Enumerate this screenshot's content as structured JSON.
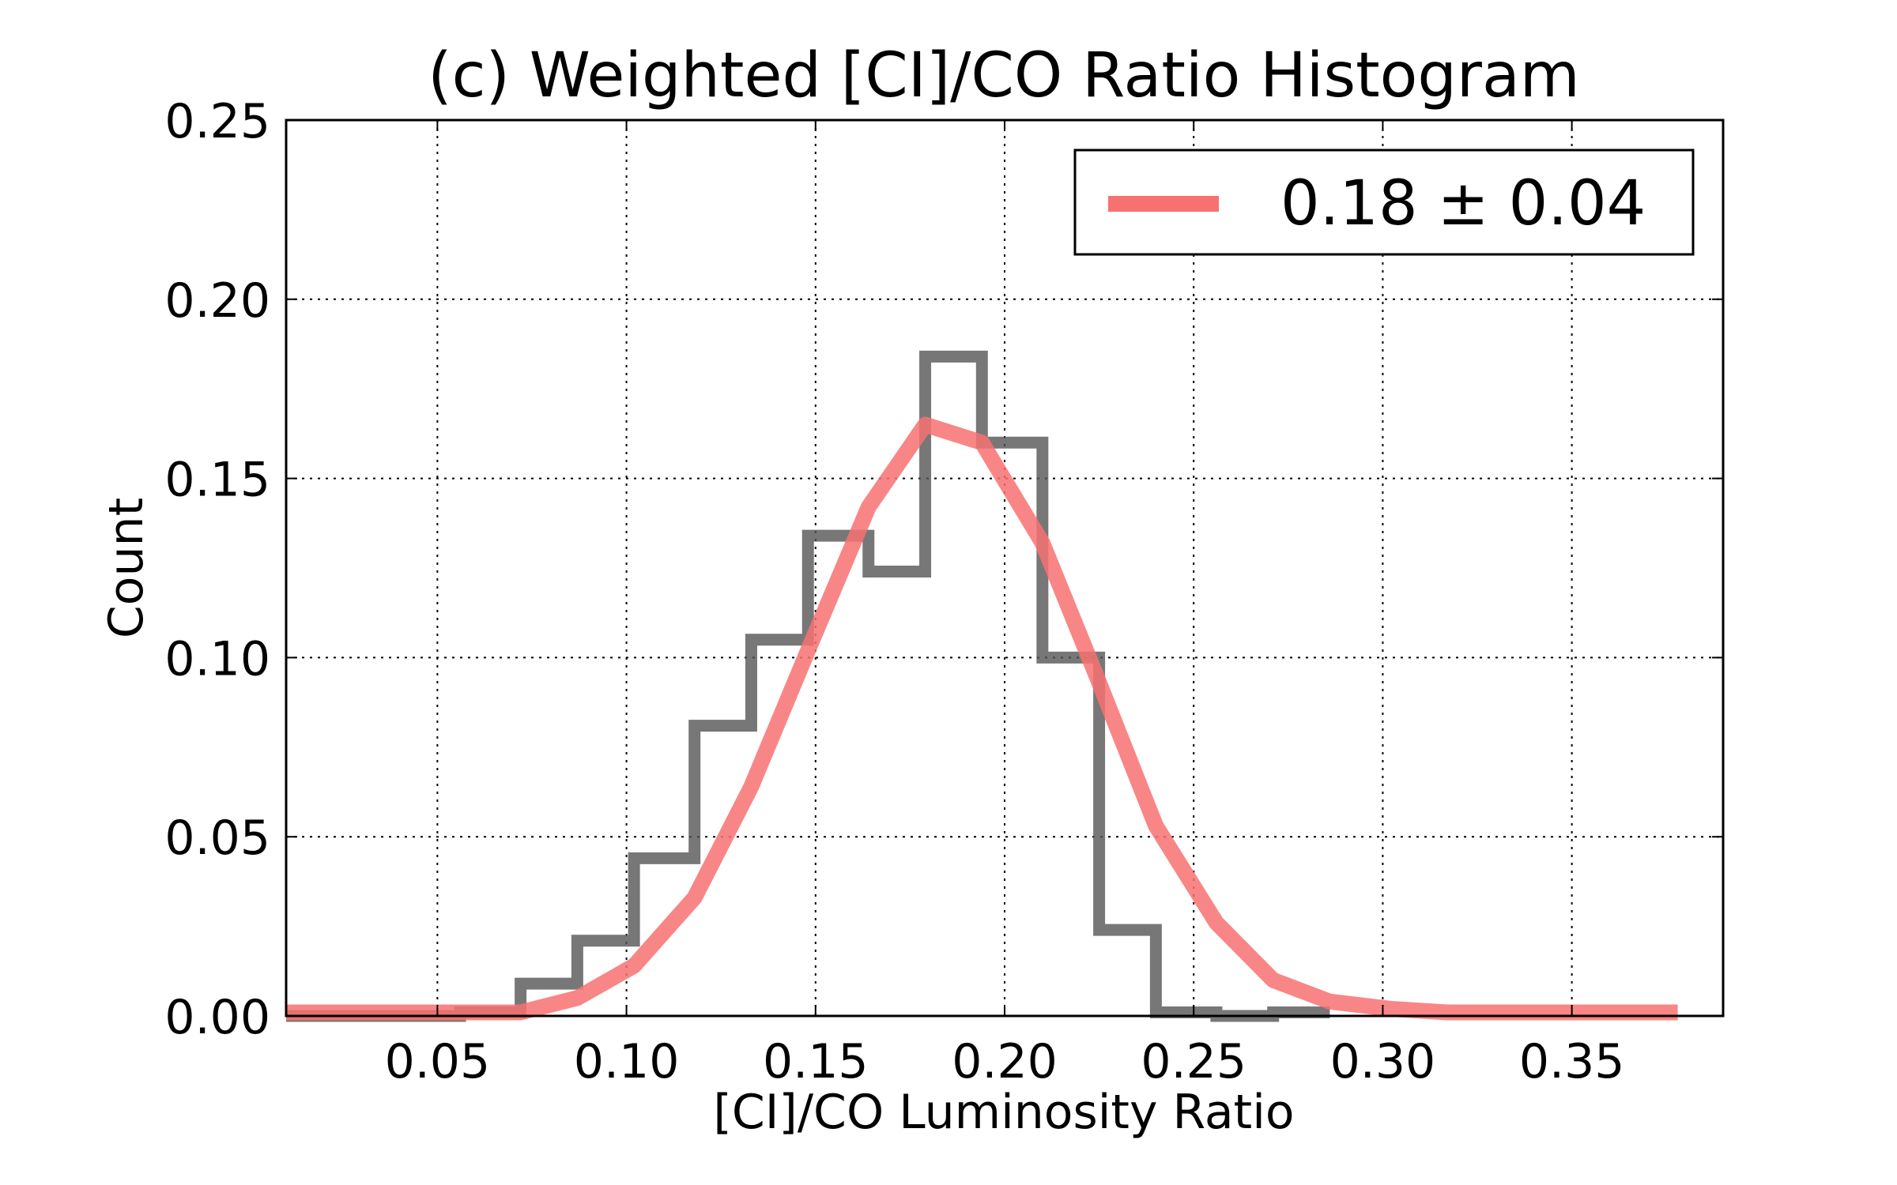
{
  "chart_data": {
    "type": "histogram",
    "title": "(c) Weighted [CI]/CO Ratio Histogram",
    "xlabel": "[CI]/CO Luminosity Ratio",
    "ylabel": "Count",
    "xlim": [
      0.01,
      0.39
    ],
    "ylim": [
      0.0,
      0.25
    ],
    "xticks": [
      0.05,
      0.1,
      0.15,
      0.2,
      0.25,
      0.3,
      0.35
    ],
    "xtick_labels": [
      "0.05",
      "0.10",
      "0.15",
      "0.20",
      "0.25",
      "0.30",
      "0.35"
    ],
    "yticks": [
      0.0,
      0.05,
      0.1,
      0.15,
      0.2,
      0.25
    ],
    "ytick_labels": [
      "0.00",
      "0.05",
      "0.10",
      "0.15",
      "0.20",
      "0.25"
    ],
    "grid": true,
    "legend_position": "top-right",
    "series": [
      {
        "kind": "step-histogram",
        "color": "#555555",
        "bin_edges": [
          0.01,
          0.056,
          0.072,
          0.087,
          0.102,
          0.118,
          0.133,
          0.148,
          0.164,
          0.179,
          0.194,
          0.21,
          0.225,
          0.24,
          0.256,
          0.271,
          0.286
        ],
        "values": [
          0.0,
          0.001,
          0.009,
          0.021,
          0.044,
          0.081,
          0.105,
          0.134,
          0.124,
          0.184,
          0.16,
          0.1,
          0.024,
          0.001,
          0.0,
          0.001
        ]
      },
      {
        "kind": "curve",
        "color": "#f87171",
        "legend": "0.18 ± 0.04",
        "x": [
          0.01,
          0.026,
          0.041,
          0.056,
          0.072,
          0.087,
          0.102,
          0.118,
          0.133,
          0.148,
          0.164,
          0.179,
          0.194,
          0.21,
          0.225,
          0.24,
          0.256,
          0.271,
          0.286,
          0.302,
          0.317,
          0.332,
          0.348,
          0.363,
          0.378
        ],
        "y": [
          0.001,
          0.001,
          0.001,
          0.001,
          0.001,
          0.005,
          0.014,
          0.033,
          0.064,
          0.102,
          0.142,
          0.165,
          0.16,
          0.132,
          0.093,
          0.053,
          0.026,
          0.01,
          0.004,
          0.002,
          0.001,
          0.001,
          0.001,
          0.001,
          0.001
        ]
      }
    ]
  }
}
